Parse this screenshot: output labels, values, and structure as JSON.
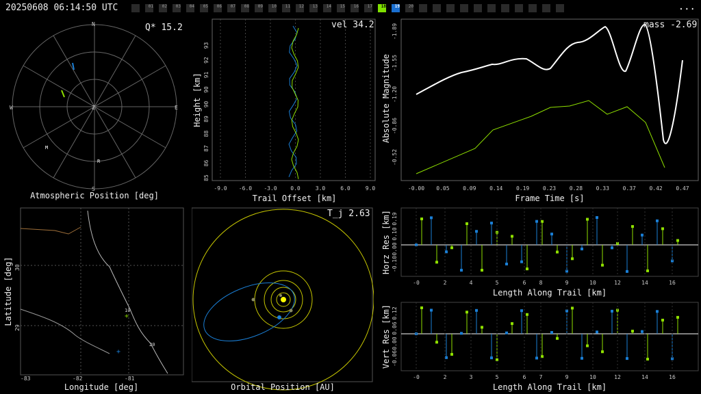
{
  "header": {
    "timestamp": "20250608 06:14:50 UTC",
    "menu": "...",
    "frames": [
      "",
      "01",
      "02",
      "03",
      "04",
      "05",
      "06",
      "07",
      "08",
      "09",
      "10",
      "11",
      "12",
      "13",
      "14",
      "15",
      "16",
      "17",
      "18",
      "19",
      "20",
      "",
      "",
      "",
      "",
      "",
      "",
      "",
      "",
      "",
      "",
      ""
    ],
    "highlight_green": 18,
    "highlight_blue": 19
  },
  "polar": {
    "title": "Atmospheric Position [deg]",
    "stat": "Q* 15.2",
    "labels": {
      "n": "N",
      "s": "S",
      "e": "E",
      "w": "W",
      "z": "Z",
      "m": "M",
      "r": "R"
    }
  },
  "height_plot": {
    "xlabel": "Trail Offset [km]",
    "ylabel": "Height [km]",
    "stat": "vel 34.2",
    "xticks": [
      "-9.0",
      "-6.0",
      "-3.0",
      "0.0",
      "3.0",
      "6.0",
      "9.0"
    ],
    "yticks": [
      "85",
      "86",
      "87",
      "88",
      "89",
      "90",
      "90",
      "91",
      "92",
      "93"
    ]
  },
  "mag_plot": {
    "xlabel": "Frame Time [s]",
    "ylabel": "Absolute Magnitude",
    "stat": "mass -2.69",
    "xticks": [
      "-0.00",
      "0.05",
      "0.09",
      "0.14",
      "0.19",
      "0.23",
      "0.28",
      "0.33",
      "0.37",
      "0.42",
      "0.47"
    ],
    "yticks": [
      "-1.89",
      "-1.55",
      "-1.20",
      "-0.86",
      "-0.52"
    ]
  },
  "map": {
    "xlabel": "Longitude [deg]",
    "ylabel": "Latitude [deg]",
    "xticks": [
      "-83",
      "-82",
      "-81"
    ],
    "yticks": [
      "30",
      "29"
    ],
    "marker_labels": [
      "10",
      "20"
    ]
  },
  "orbit": {
    "title": "Orbital Position [AU]",
    "stat": "T_j 2.63"
  },
  "horz_res": {
    "xlabel": "Length Along Trail [km]",
    "ylabel": "Horz Res [km]",
    "yticks": [
      "0.19",
      "0.10",
      "0.00",
      "-0.10"
    ],
    "xticks": [
      "-0",
      "2",
      "4",
      "5",
      "6",
      "8",
      "9",
      "10",
      "12",
      "14",
      "16"
    ]
  },
  "vert_res": {
    "xlabel": "Length Along Trail [km]",
    "ylabel": "Vert Res [km]",
    "yticks": [
      "0.12",
      "0.06",
      "0.00",
      "-0.06"
    ],
    "xticks": [
      "-0",
      "2",
      "3",
      "5",
      "6",
      "7",
      "9",
      "10",
      "12",
      "14",
      "16"
    ]
  },
  "colors": {
    "green": "#8fe000",
    "blue": "#1a7fd6",
    "white": "#ffffff",
    "yellow": "#c8c800",
    "grid": "#555555"
  }
}
